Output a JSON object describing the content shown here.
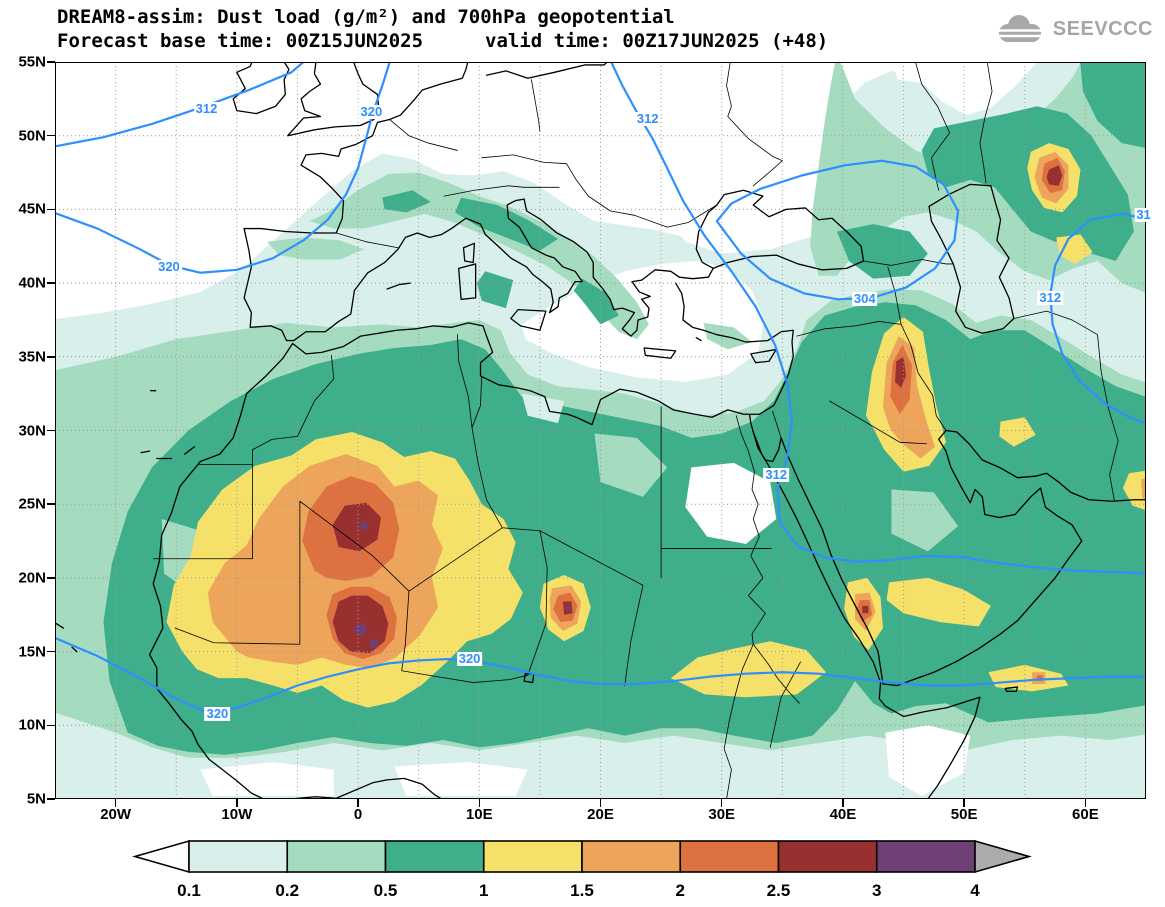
{
  "header": {
    "title1": "DREAM8-assim: Dust load (g/m²) and 700hPa geopotential",
    "title2a": "Forecast base time: 00Z15JUN2025",
    "title2b": "valid time: 00Z17JUN2025 (+48)",
    "logo_text": "SEEVCCC"
  },
  "chart_data": {
    "type": "heatmap",
    "title": "DREAM8-assim: Dust load (g/m²) and 700hPa geopotential",
    "model": "DREAM8-assim",
    "variable": "Dust load (g/m²)",
    "overlay_variable": "700hPa geopotential",
    "forecast_base_time": "00Z15JUN2025",
    "valid_time": "00Z17JUN2025",
    "lead": "+48",
    "map_extent": {
      "lon_min": -25,
      "lon_max": 65,
      "lat_min": 5,
      "lat_max": 55
    },
    "x_axis": {
      "ticks": [
        "20W",
        "10W",
        "0",
        "10E",
        "20E",
        "30E",
        "40E",
        "50E",
        "60E"
      ]
    },
    "y_axis": {
      "ticks": [
        "55N",
        "50N",
        "45N",
        "40N",
        "35N",
        "30N",
        "25N",
        "20N",
        "15N",
        "10N",
        "5N"
      ]
    },
    "grid": "dotted, 5 degree spacing",
    "colorbar": {
      "levels": [
        "0.1",
        "0.2",
        "0.5",
        "1",
        "1.5",
        "2",
        "2.5",
        "3",
        "4"
      ],
      "colors": [
        "#ffffff",
        "#d8efeb",
        "#a5dcc0",
        "#3fae8b",
        "#f5e169",
        "#eda55c",
        "#dd7140",
        "#993030",
        "#6f4076",
        "#ababab"
      ]
    },
    "geopotential": {
      "color": "#2f8fff",
      "labels": [
        {
          "text": "312",
          "lon": -12.5,
          "lat": 51.8
        },
        {
          "text": "320",
          "lon": 1.1,
          "lat": 51.6
        },
        {
          "text": "312",
          "lon": 23.9,
          "lat": 51.1
        },
        {
          "text": "320",
          "lon": -15.6,
          "lat": 41.1
        },
        {
          "text": "304",
          "lon": 41.8,
          "lat": 38.9
        },
        {
          "text": "312",
          "lon": 57.1,
          "lat": 39.0
        },
        {
          "text": "31",
          "lon": 64.8,
          "lat": 44.6
        },
        {
          "text": "312",
          "lon": 34.5,
          "lat": 27.0
        },
        {
          "text": "320",
          "lon": 9.2,
          "lat": 14.5
        },
        {
          "text": "320",
          "lon": -11.6,
          "lat": 10.8
        }
      ]
    },
    "dust_maxima": [
      {
        "lon": 0.3,
        "lat": 16.4,
        "load_exceeds": 3
      },
      {
        "lon": 0.3,
        "lat": 23.5,
        "load_exceeds": 3
      },
      {
        "lon": 17.3,
        "lat": 17.9,
        "load_exceeds": 3
      },
      {
        "lon": 41.8,
        "lat": 17.8,
        "load_exceeds": 2.5
      },
      {
        "lon": 44.7,
        "lat": 34.0,
        "load_exceeds": 2.5
      },
      {
        "lon": 57.4,
        "lat": 47.2,
        "load_exceeds": 2.5
      }
    ]
  }
}
